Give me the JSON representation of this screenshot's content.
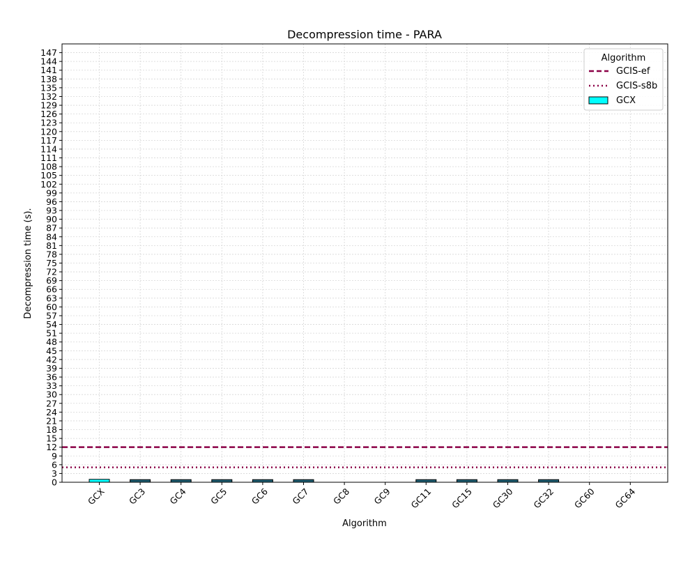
{
  "chart_data": {
    "type": "bar",
    "title": "Decompression time -  PARA",
    "xlabel": "Algorithm",
    "ylabel": "Decompression time (s).",
    "categories": [
      "GCX",
      "GC3",
      "GC4",
      "GC5",
      "GC6",
      "GC7",
      "GC8",
      "GC9",
      "GC11",
      "GC15",
      "GC30",
      "GC32",
      "GC60",
      "GC64"
    ],
    "series": [
      {
        "name": "GCX",
        "values": [
          1.0,
          0.9,
          0.9,
          0.9,
          0.9,
          0.9,
          0.0,
          0.0,
          0.9,
          0.9,
          0.9,
          0.9,
          0.0,
          0.0
        ]
      }
    ],
    "bar_colors": {
      "highlight": "#00ffff",
      "default": "#1f5f73"
    },
    "reference_lines": [
      {
        "name": "GCIS-ef",
        "value": 12.0,
        "style": "dashed",
        "color": "#8b0046"
      },
      {
        "name": "GCIS-s8b",
        "value": 5.1,
        "style": "dotted",
        "color": "#8b0046"
      }
    ],
    "ylim": [
      0,
      150
    ],
    "yticks": [
      0,
      3,
      6,
      9,
      12,
      15,
      18,
      21,
      24,
      27,
      30,
      33,
      36,
      39,
      42,
      45,
      48,
      51,
      54,
      57,
      60,
      63,
      66,
      69,
      72,
      75,
      78,
      81,
      84,
      87,
      90,
      93,
      96,
      99,
      102,
      105,
      108,
      111,
      114,
      117,
      120,
      123,
      126,
      129,
      132,
      135,
      138,
      141,
      144,
      147
    ],
    "grid": true,
    "legend": {
      "title": "Algorithm",
      "position": "top-right",
      "entries": [
        "GCIS-ef",
        "GCIS-s8b",
        "GCX"
      ]
    }
  }
}
